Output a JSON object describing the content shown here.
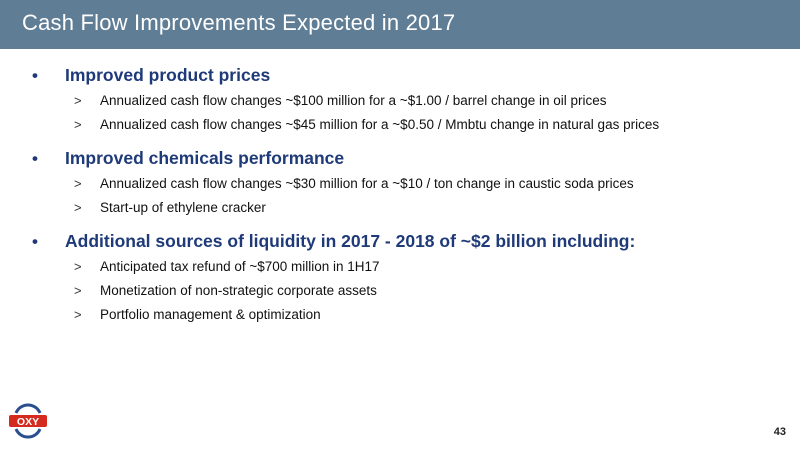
{
  "slide": {
    "title": "Cash Flow Improvements Expected in 2017",
    "bullets": [
      {
        "label": "Improved product prices",
        "items": [
          "Annualized cash flow changes ~$100 million for a ~$1.00 / barrel change in oil prices",
          "Annualized cash flow changes ~$45 million for a ~$0.50 / Mmbtu change in natural gas prices"
        ]
      },
      {
        "label": "Improved chemicals performance",
        "items": [
          "Annualized cash flow changes ~$30 million for a ~$10 / ton change in caustic soda prices",
          "Start-up of ethylene cracker"
        ]
      },
      {
        "label": "Additional sources of liquidity in 2017 - 2018 of ~$2 billion including:",
        "items": [
          "Anticipated tax refund of ~$700 million in 1H17",
          "Monetization of non-strategic corporate assets",
          "Portfolio management & optimization"
        ]
      }
    ],
    "bullet_symbol": "•",
    "sub_symbol": ">",
    "page_number": "43"
  },
  "logo": {
    "text": "OXY",
    "icon": "oxy-logo"
  },
  "colors": {
    "title_bar": "#5f7d95",
    "heading": "#1f3a78",
    "logo_red": "#d52b1e",
    "logo_blue": "#2a4f8e"
  }
}
